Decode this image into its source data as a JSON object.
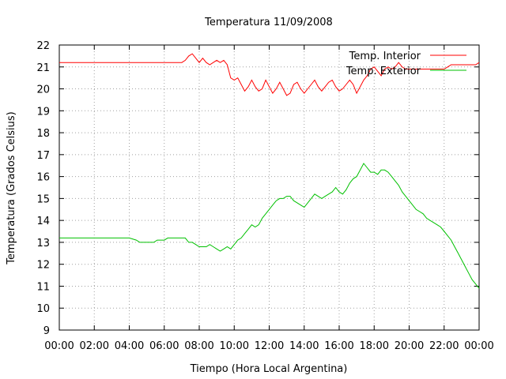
{
  "chart_data": {
    "type": "line",
    "title": "Temperatura 11/09/2008",
    "xlabel": "Tiempo (Hora Local Argentina)",
    "ylabel": "Temperatura (Grados Celsius)",
    "xlim": [
      0,
      24
    ],
    "ylim": [
      9,
      22
    ],
    "x_tick_labels": [
      "00:00",
      "02:00",
      "04:00",
      "06:00",
      "08:00",
      "10:00",
      "12:00",
      "14:00",
      "16:00",
      "18:00",
      "20:00",
      "22:00",
      "00:00"
    ],
    "y_tick_labels": [
      "9",
      "10",
      "11",
      "12",
      "13",
      "14",
      "15",
      "16",
      "17",
      "18",
      "19",
      "20",
      "21",
      "22"
    ],
    "grid": true,
    "legend_position": "top-right",
    "series": [
      {
        "name": "Temp. Interior",
        "color": "#ff0000",
        "points": [
          [
            0,
            21.2
          ],
          [
            7.0,
            21.2
          ],
          [
            7.2,
            21.3
          ],
          [
            7.4,
            21.5
          ],
          [
            7.6,
            21.6
          ],
          [
            7.8,
            21.4
          ],
          [
            8.0,
            21.2
          ],
          [
            8.2,
            21.4
          ],
          [
            8.4,
            21.2
          ],
          [
            8.6,
            21.1
          ],
          [
            8.8,
            21.2
          ],
          [
            9.0,
            21.3
          ],
          [
            9.2,
            21.2
          ],
          [
            9.4,
            21.3
          ],
          [
            9.6,
            21.1
          ],
          [
            9.8,
            20.5
          ],
          [
            10.0,
            20.4
          ],
          [
            10.2,
            20.5
          ],
          [
            10.4,
            20.2
          ],
          [
            10.6,
            19.9
          ],
          [
            10.8,
            20.1
          ],
          [
            11.0,
            20.4
          ],
          [
            11.2,
            20.1
          ],
          [
            11.4,
            19.9
          ],
          [
            11.6,
            20.0
          ],
          [
            11.8,
            20.4
          ],
          [
            12.0,
            20.1
          ],
          [
            12.2,
            19.8
          ],
          [
            12.4,
            20.0
          ],
          [
            12.6,
            20.3
          ],
          [
            12.8,
            20.0
          ],
          [
            13.0,
            19.7
          ],
          [
            13.2,
            19.8
          ],
          [
            13.4,
            20.2
          ],
          [
            13.6,
            20.3
          ],
          [
            13.8,
            20.0
          ],
          [
            14.0,
            19.8
          ],
          [
            14.2,
            20.0
          ],
          [
            14.4,
            20.2
          ],
          [
            14.6,
            20.4
          ],
          [
            14.8,
            20.1
          ],
          [
            15.0,
            19.9
          ],
          [
            15.2,
            20.1
          ],
          [
            15.4,
            20.3
          ],
          [
            15.6,
            20.4
          ],
          [
            15.8,
            20.1
          ],
          [
            16.0,
            19.9
          ],
          [
            16.2,
            20.0
          ],
          [
            16.4,
            20.2
          ],
          [
            16.6,
            20.4
          ],
          [
            16.8,
            20.2
          ],
          [
            17.0,
            19.8
          ],
          [
            17.2,
            20.1
          ],
          [
            17.4,
            20.4
          ],
          [
            17.6,
            20.6
          ],
          [
            17.8,
            20.9
          ],
          [
            18.0,
            21.0
          ],
          [
            18.2,
            20.8
          ],
          [
            18.4,
            20.6
          ],
          [
            18.6,
            20.9
          ],
          [
            18.8,
            21.0
          ],
          [
            19.0,
            20.9
          ],
          [
            19.2,
            21.0
          ],
          [
            19.4,
            21.2
          ],
          [
            19.6,
            21.0
          ],
          [
            19.8,
            20.9
          ],
          [
            20.0,
            20.9
          ],
          [
            22.0,
            20.9
          ],
          [
            22.2,
            21.0
          ],
          [
            22.4,
            21.1
          ],
          [
            23.8,
            21.1
          ],
          [
            24.0,
            21.2
          ]
        ]
      },
      {
        "name": "Temp. Exterior",
        "color": "#00c000",
        "points": [
          [
            0,
            13.2
          ],
          [
            4.0,
            13.2
          ],
          [
            4.4,
            13.1
          ],
          [
            4.6,
            13.0
          ],
          [
            5.0,
            13.0
          ],
          [
            5.4,
            13.0
          ],
          [
            5.6,
            13.1
          ],
          [
            6.0,
            13.1
          ],
          [
            6.2,
            13.2
          ],
          [
            7.2,
            13.2
          ],
          [
            7.4,
            13.0
          ],
          [
            7.6,
            13.0
          ],
          [
            7.8,
            12.9
          ],
          [
            8.0,
            12.8
          ],
          [
            8.4,
            12.8
          ],
          [
            8.6,
            12.9
          ],
          [
            8.8,
            12.8
          ],
          [
            9.0,
            12.7
          ],
          [
            9.2,
            12.6
          ],
          [
            9.4,
            12.7
          ],
          [
            9.6,
            12.8
          ],
          [
            9.8,
            12.7
          ],
          [
            10.0,
            12.9
          ],
          [
            10.2,
            13.1
          ],
          [
            10.4,
            13.2
          ],
          [
            10.6,
            13.4
          ],
          [
            10.8,
            13.6
          ],
          [
            11.0,
            13.8
          ],
          [
            11.2,
            13.7
          ],
          [
            11.4,
            13.8
          ],
          [
            11.6,
            14.1
          ],
          [
            11.8,
            14.3
          ],
          [
            12.0,
            14.5
          ],
          [
            12.2,
            14.7
          ],
          [
            12.4,
            14.9
          ],
          [
            12.6,
            15.0
          ],
          [
            12.8,
            15.0
          ],
          [
            13.0,
            15.1
          ],
          [
            13.2,
            15.1
          ],
          [
            13.4,
            14.9
          ],
          [
            13.6,
            14.8
          ],
          [
            13.8,
            14.7
          ],
          [
            14.0,
            14.6
          ],
          [
            14.2,
            14.8
          ],
          [
            14.4,
            15.0
          ],
          [
            14.6,
            15.2
          ],
          [
            14.8,
            15.1
          ],
          [
            15.0,
            15.0
          ],
          [
            15.2,
            15.1
          ],
          [
            15.4,
            15.2
          ],
          [
            15.6,
            15.3
          ],
          [
            15.8,
            15.5
          ],
          [
            16.0,
            15.3
          ],
          [
            16.2,
            15.2
          ],
          [
            16.4,
            15.4
          ],
          [
            16.6,
            15.7
          ],
          [
            16.8,
            15.9
          ],
          [
            17.0,
            16.0
          ],
          [
            17.2,
            16.3
          ],
          [
            17.4,
            16.6
          ],
          [
            17.6,
            16.4
          ],
          [
            17.8,
            16.2
          ],
          [
            18.0,
            16.2
          ],
          [
            18.2,
            16.1
          ],
          [
            18.4,
            16.3
          ],
          [
            18.6,
            16.3
          ],
          [
            18.8,
            16.2
          ],
          [
            19.0,
            16.0
          ],
          [
            19.2,
            15.8
          ],
          [
            19.4,
            15.6
          ],
          [
            19.6,
            15.3
          ],
          [
            19.8,
            15.1
          ],
          [
            20.0,
            14.9
          ],
          [
            20.2,
            14.7
          ],
          [
            20.4,
            14.5
          ],
          [
            20.6,
            14.4
          ],
          [
            20.8,
            14.3
          ],
          [
            21.0,
            14.1
          ],
          [
            21.2,
            14.0
          ],
          [
            21.4,
            13.9
          ],
          [
            21.6,
            13.8
          ],
          [
            21.8,
            13.7
          ],
          [
            22.0,
            13.5
          ],
          [
            22.2,
            13.3
          ],
          [
            22.4,
            13.1
          ],
          [
            22.6,
            12.8
          ],
          [
            22.8,
            12.5
          ],
          [
            23.0,
            12.2
          ],
          [
            23.2,
            11.9
          ],
          [
            23.4,
            11.6
          ],
          [
            23.6,
            11.3
          ],
          [
            23.8,
            11.1
          ],
          [
            24.0,
            10.9
          ]
        ]
      }
    ]
  }
}
